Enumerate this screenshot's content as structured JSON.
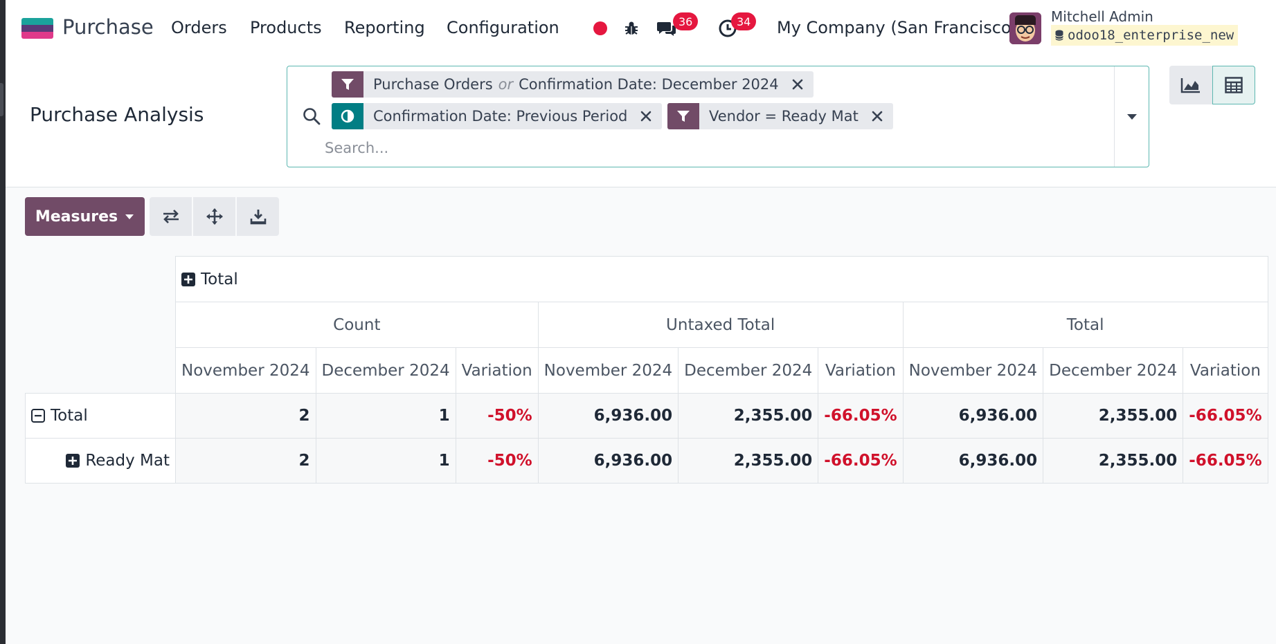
{
  "navbar": {
    "app_name": "Purchase",
    "menu": [
      "Orders",
      "Products",
      "Reporting",
      "Configuration"
    ],
    "messages_count": "36",
    "activities_count": "34",
    "company": "My Company (San Francisco)",
    "user_name": "Mitchell Admin",
    "database": "odoo18_enterprise_new",
    "logo_colors": [
      "#1ba39c",
      "#5a3a78",
      "#e0398a"
    ]
  },
  "control_panel": {
    "title": "Purchase Analysis",
    "facets": {
      "filter1_a": "Purchase Orders",
      "filter1_or": "or",
      "filter1_b": "Confirmation Date: December 2024",
      "comparison": "Confirmation Date: Previous Period",
      "filter2": "Vendor = Ready Mat"
    },
    "search_placeholder": "Search...",
    "colors": {
      "filter": "#714b67",
      "comparison": "#017e84",
      "accent": "#5cb7b0"
    }
  },
  "toolbar": {
    "measures_label": "Measures"
  },
  "pivot": {
    "col_total": "Total",
    "measures": [
      "Count",
      "Untaxed Total",
      "Total"
    ],
    "periods": [
      "November 2024",
      "December 2024",
      "Variation"
    ],
    "rows": [
      {
        "label": "Total",
        "values": [
          "2",
          "1",
          "-50%",
          "6,936.00",
          "2,355.00",
          "-66.05%",
          "6,936.00",
          "2,355.00",
          "-66.05%"
        ]
      },
      {
        "label": "Ready Mat",
        "values": [
          "2",
          "1",
          "-50%",
          "6,936.00",
          "2,355.00",
          "-66.05%",
          "6,936.00",
          "2,355.00",
          "-66.05%"
        ]
      }
    ]
  }
}
